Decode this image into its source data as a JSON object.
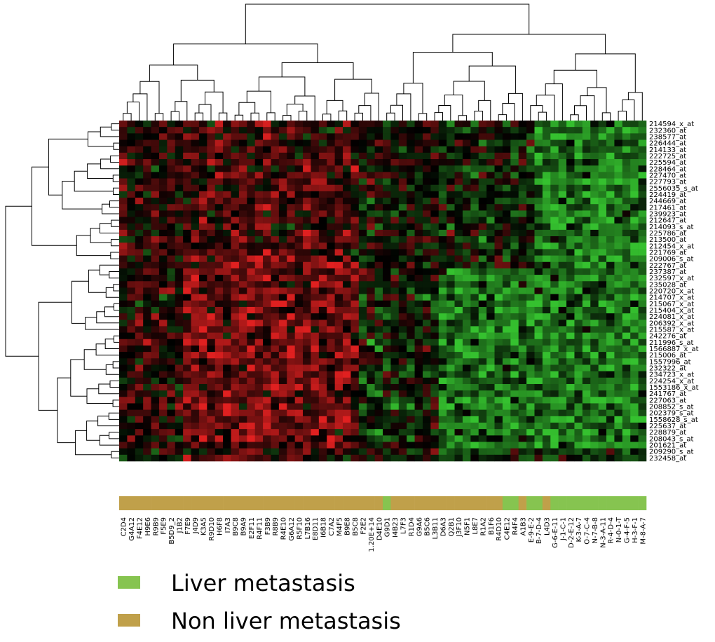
{
  "chart_data": {
    "type": "heatmap",
    "title": "",
    "xlabel": "",
    "ylabel": "",
    "color_scale": {
      "low": "#35c12f",
      "mid": "#000000",
      "high": "#e02020",
      "range": [
        -2,
        2
      ]
    },
    "columns": [
      "C2D4",
      "G4A12",
      "F4E12",
      "H9E6",
      "R9B9",
      "F5E9",
      "B5D9_2",
      "J1B2",
      "F7E9",
      "J4D9",
      "K3A5",
      "R9D10",
      "H6F8",
      "I7A3",
      "B9C8",
      "B9A9",
      "E2F11",
      "R4F11",
      "F3B9",
      "R8B9",
      "R4E10",
      "G6A12",
      "R5F10",
      "L7B16",
      "E8D11",
      "I6B18",
      "C7A2",
      "M4F5",
      "B9E8",
      "B5C8",
      "F2E2",
      "1.20E+14",
      "D4E10",
      "G9D1",
      "I4B23",
      "L7F3",
      "R1D4",
      "G9A6",
      "B5C6",
      "L3B11",
      "D6A3",
      "Q2B1",
      "J3F10",
      "N5F1",
      "L8E7",
      "R1A2",
      "B1F6",
      "R4D10",
      "C4E12",
      "R4F4",
      "A1B3",
      "E-9-E-2",
      "B-7-D-4",
      "L4D3",
      "G-6-E-11",
      "J-1-C-1",
      "D-2-E-12",
      "K-3-A-7",
      "O-7-C-4",
      "N-7-B-8",
      "N-3-A-11",
      "R-4-D-4",
      "N-0-1-T",
      "G-4-F-5",
      "H-3-F-1",
      "M-8-A-7"
    ],
    "rows": [
      "214594_x_at",
      "232360_at",
      "238577_at",
      "226444_at",
      "214133_at",
      "222725_at",
      "225594_at",
      "228464_at",
      "227470_at",
      "227793_at",
      "2556035_s_at",
      "224419_at",
      "244669_at",
      "217461_at",
      "239923_at",
      "212647_at",
      "214093_s_at",
      "225786_at",
      "213500_at",
      "212454_x_at",
      "221769_at",
      "209006_s_at",
      "222767_at",
      "237387_at",
      "232597_x_at",
      "235028_at",
      "220720_x_at",
      "214707_x_at",
      "215067_x_at",
      "215404_x_at",
      "224081_x_at",
      "206392_x_at",
      "215587_x_at",
      "242276_at",
      "211996_s_at",
      "1566887_x_at",
      "215006_at",
      "1557996_at",
      "232322_at",
      "234723_x_at",
      "224254_x_at",
      "1553186_x_at",
      "241767_at",
      "227063_at",
      "208852_s_at",
      "202379_s_at",
      "1558628_s_at",
      "225637_at",
      "228879_at",
      "208043_s_at",
      "201621_at",
      "209290_s_at",
      "232458_at"
    ],
    "column_groups": [
      "Non liver metastasis",
      "Non liver metastasis",
      "Non liver metastasis",
      "Non liver metastasis",
      "Non liver metastasis",
      "Non liver metastasis",
      "Non liver metastasis",
      "Non liver metastasis",
      "Non liver metastasis",
      "Non liver metastasis",
      "Non liver metastasis",
      "Non liver metastasis",
      "Non liver metastasis",
      "Non liver metastasis",
      "Non liver metastasis",
      "Non liver metastasis",
      "Non liver metastasis",
      "Non liver metastasis",
      "Non liver metastasis",
      "Non liver metastasis",
      "Non liver metastasis",
      "Non liver metastasis",
      "Non liver metastasis",
      "Non liver metastasis",
      "Non liver metastasis",
      "Non liver metastasis",
      "Non liver metastasis",
      "Non liver metastasis",
      "Non liver metastasis",
      "Non liver metastasis",
      "Non liver metastasis",
      "Non liver metastasis",
      "Non liver metastasis",
      "Liver metastasis",
      "Non liver metastasis",
      "Non liver metastasis",
      "Non liver metastasis",
      "Non liver metastasis",
      "Non liver metastasis",
      "Non liver metastasis",
      "Non liver metastasis",
      "Non liver metastasis",
      "Non liver metastasis",
      "Non liver metastasis",
      "Non liver metastasis",
      "Non liver metastasis",
      "Non liver metastasis",
      "Non liver metastasis",
      "Liver metastasis",
      "Liver metastasis",
      "Non liver metastasis",
      "Liver metastasis",
      "Liver metastasis",
      "Non liver metastasis",
      "Liver metastasis",
      "Liver metastasis",
      "Liver metastasis",
      "Liver metastasis",
      "Liver metastasis",
      "Liver metastasis",
      "Liver metastasis",
      "Liver metastasis",
      "Liver metastasis",
      "Liver metastasis",
      "Liver metastasis",
      "Liver metastasis"
    ],
    "groups": [
      {
        "name": "Liver metastasis",
        "color": "#86c450"
      },
      {
        "name": "Non liver metastasis",
        "color": "#c0a04a"
      }
    ],
    "legend_position": "bottom-left",
    "grid": false
  }
}
